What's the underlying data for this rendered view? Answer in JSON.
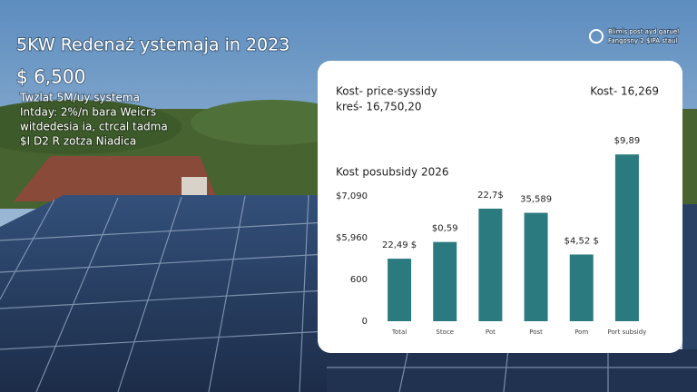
{
  "header": {
    "title": "5KW Redenaż ystemaja in 2023",
    "price": "$ 6,500",
    "lines": [
      "Twzlat 5M/uy systema",
      "Intday: 2%/n bara Weicrs",
      "witdedesia ia, ctrcal tadma",
      "$I D2 R zotza Niadica"
    ]
  },
  "logo": {
    "lines": [
      "Blimis post ayd garuel",
      "Fangosny 2 $IPA staul"
    ]
  },
  "panel": {
    "heading": "Kost- price-syssidy",
    "subheading": "kreś- 16,750,20",
    "total": "Kost- 16,269"
  },
  "chart_data": {
    "type": "bar",
    "title": "Kost posubsidy 2026",
    "categories": [
      "Total",
      "Stoce",
      "Pot",
      "Post",
      "Pom",
      "Port subsidy"
    ],
    "values": [
      1.5,
      1.9,
      2.7,
      2.6,
      1.6,
      4.0
    ],
    "bar_labels": [
      "22,49 $",
      "$0,59",
      "22,7$",
      "35,589",
      "$4,52 $",
      "$9,89"
    ],
    "color": "#2b7a80",
    "ylim": [
      0,
      4.2
    ],
    "yticks": [
      0,
      {
        "value": 1,
        "label": "600"
      },
      {
        "value": 2,
        "label": "$5,960"
      },
      {
        "value": 3,
        "label": "$7,090"
      }
    ],
    "grid": false
  }
}
